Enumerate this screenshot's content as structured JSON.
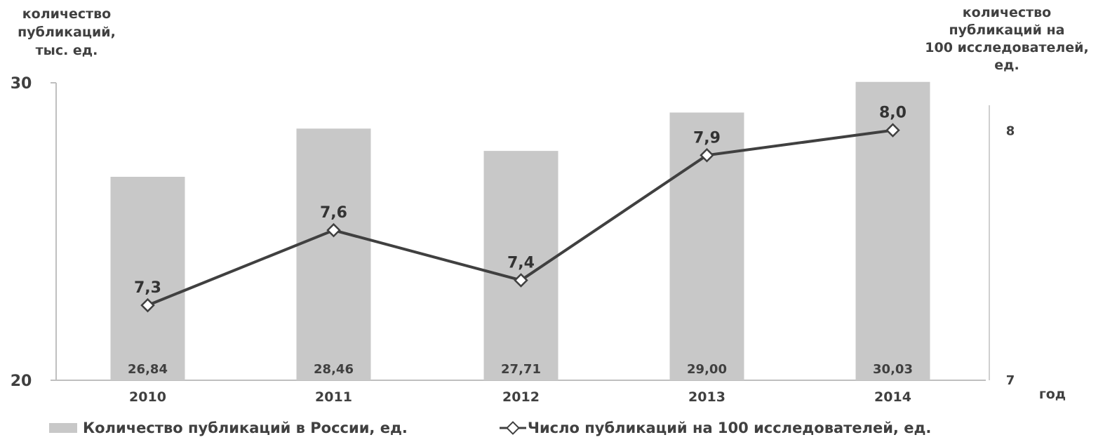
{
  "chart_data": {
    "type": "bar",
    "categories": [
      "2010",
      "2011",
      "2012",
      "2013",
      "2014"
    ],
    "xlabel": "год",
    "ylabel_left": [
      "количество",
      "публикаций,",
      "тыс. ед."
    ],
    "ylabel_right": [
      "количество",
      "публикаций на",
      "100 исследователей,",
      "ед."
    ],
    "y_left": {
      "lim": [
        20,
        30
      ],
      "ticks": [
        "20",
        "30"
      ]
    },
    "y_right": {
      "lim": [
        7,
        8.1
      ],
      "ticks": [
        "7",
        "8"
      ]
    },
    "series": [
      {
        "name": "Количество публикаций в России, ед.",
        "type": "bar",
        "axis": "left",
        "values": [
          26.84,
          28.46,
          27.71,
          29.0,
          30.03
        ],
        "labels": [
          "26,84",
          "28,46",
          "27,71",
          "29,00",
          "30,03"
        ],
        "color": "#c8c8c8"
      },
      {
        "name": "Число публикаций на 100 исследователей, ед.",
        "type": "line",
        "axis": "right",
        "values": [
          7.3,
          7.6,
          7.4,
          7.9,
          8.0
        ],
        "labels": [
          "7,3",
          "7,6",
          "7,4",
          "7,9",
          "8,0"
        ],
        "color": "#404040",
        "marker": "diamond"
      }
    ],
    "legend_position": "bottom"
  }
}
